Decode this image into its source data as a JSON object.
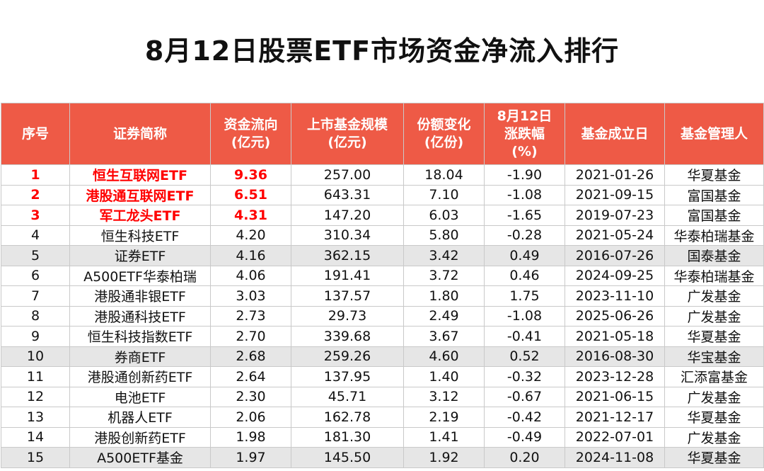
{
  "title": "8月12日股票ETF市场资金净流入排行",
  "headers": [
    [
      "序号"
    ],
    [
      "证券简称"
    ],
    [
      "资金流向",
      "(亿元)"
    ],
    [
      "上市基金规模",
      "(亿元)"
    ],
    [
      "份额变化",
      "(亿份)"
    ],
    [
      "8月12日",
      "涨跌幅",
      "(%)"
    ],
    [
      "基金成立日"
    ],
    [
      "基金管理人"
    ]
  ],
  "colors": {
    "header_bg": "#ee5a46",
    "highlight": "#ff0000",
    "alt_row": "#e6e6e6"
  },
  "rows": [
    [
      "1",
      "恒生互联网ETF",
      "9.36",
      "257.00",
      "18.04",
      "-1.90",
      "2021-01-26",
      "华夏基金"
    ],
    [
      "2",
      "港股通互联网ETF",
      "6.51",
      "643.31",
      "7.10",
      "-1.08",
      "2021-09-15",
      "富国基金"
    ],
    [
      "3",
      "军工龙头ETF",
      "4.31",
      "147.20",
      "6.03",
      "-1.65",
      "2019-07-23",
      "富国基金"
    ],
    [
      "4",
      "恒生科技ETF",
      "4.20",
      "310.34",
      "5.80",
      "-0.28",
      "2021-05-24",
      "华泰柏瑞基金"
    ],
    [
      "5",
      "证券ETF",
      "4.16",
      "362.15",
      "3.42",
      "0.49",
      "2016-07-26",
      "国泰基金"
    ],
    [
      "6",
      "A500ETF华泰柏瑞",
      "4.06",
      "191.41",
      "3.72",
      "0.46",
      "2024-09-25",
      "华泰柏瑞基金"
    ],
    [
      "7",
      "港股通非银ETF",
      "3.03",
      "137.57",
      "1.80",
      "1.75",
      "2023-11-10",
      "广发基金"
    ],
    [
      "8",
      "港股通科技ETF",
      "2.73",
      "29.73",
      "2.49",
      "-1.08",
      "2025-06-26",
      "广发基金"
    ],
    [
      "9",
      "恒生科技指数ETF",
      "2.70",
      "339.68",
      "3.67",
      "-0.41",
      "2021-05-18",
      "华夏基金"
    ],
    [
      "10",
      "券商ETF",
      "2.68",
      "259.26",
      "4.60",
      "0.52",
      "2016-08-30",
      "华宝基金"
    ],
    [
      "11",
      "港股通创新药ETF",
      "2.64",
      "137.95",
      "1.40",
      "-0.32",
      "2023-12-28",
      "汇添富基金"
    ],
    [
      "12",
      "电池ETF",
      "2.30",
      "45.71",
      "3.12",
      "-0.67",
      "2021-06-15",
      "广发基金"
    ],
    [
      "13",
      "机器人ETF",
      "2.06",
      "162.78",
      "2.19",
      "-0.42",
      "2021-12-17",
      "华夏基金"
    ],
    [
      "14",
      "港股创新药ETF",
      "1.98",
      "181.30",
      "1.41",
      "-0.49",
      "2022-07-01",
      "广发基金"
    ],
    [
      "15",
      "A500ETF基金",
      "1.97",
      "145.50",
      "1.92",
      "0.20",
      "2024-11-08",
      "华夏基金"
    ]
  ]
}
